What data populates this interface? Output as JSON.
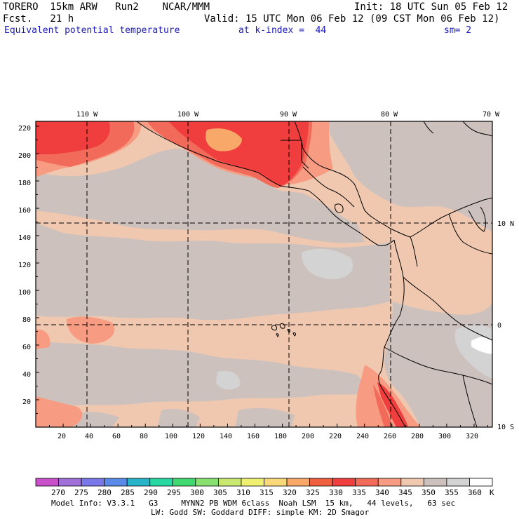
{
  "header": {
    "model": "TORERO  15km ARW   Run2    NCAR/MMM",
    "init": "Init: 18 UTC Sun 05 Feb 12",
    "fcst": "Fcst.   21 h",
    "valid": "Valid: 15 UTC Mon 06 Feb 12 (09 CST Mon 06 Feb 12)",
    "field": "Equivalent potential temperature",
    "level": "at k-index =  44",
    "smooth": "sm= 2"
  },
  "map": {
    "top_lon_labels": [
      "110 W",
      "100 W",
      "90 W",
      "80 W",
      "70 W"
    ],
    "right_lat_labels": [
      "10 N",
      "0",
      "10 S"
    ],
    "y_ticks": [
      "220",
      "200",
      "180",
      "160",
      "140",
      "120",
      "100",
      "80",
      "60",
      "40",
      "20"
    ],
    "x_ticks": [
      "20",
      "40",
      "60",
      "80",
      "100",
      "120",
      "140",
      "160",
      "180",
      "200",
      "220",
      "240",
      "260",
      "280",
      "300",
      "320"
    ],
    "colors": {
      "c330": "#f03e3e",
      "c335": "#f26a5a",
      "c340": "#f79b82",
      "c345": "#f0c8b0",
      "c350": "#cdc1bd",
      "c355": "#d3d3d3",
      "frame": "#000000",
      "coast": "#000000"
    }
  },
  "colorbar": {
    "labels": [
      "270",
      "275",
      "280",
      "285",
      "290",
      "295",
      "300",
      "305",
      "310",
      "315",
      "320",
      "325",
      "330",
      "335",
      "340",
      "345",
      "350",
      "355",
      "360"
    ],
    "unit": "K",
    "colors": [
      "#c850c8",
      "#a070d8",
      "#7a78e8",
      "#5a8ae8",
      "#28b4c8",
      "#28d8a0",
      "#40d870",
      "#88e070",
      "#c8e870",
      "#f0f070",
      "#f8d878",
      "#f8a868",
      "#f06040",
      "#f03e3e",
      "#f26a5a",
      "#f79b82",
      "#f0c8b0",
      "#cdc1bd",
      "#d3d3d3",
      "#ffffff"
    ]
  },
  "footer": {
    "line1": "Model Info: V3.3.1   G3     MYNN2 PB WDM 6class  Noah LSM  15 km,   44 levels,   63 sec",
    "line2": "LW: Godd SW: Goddard DIFF: simple KM: 2D Smagor"
  }
}
